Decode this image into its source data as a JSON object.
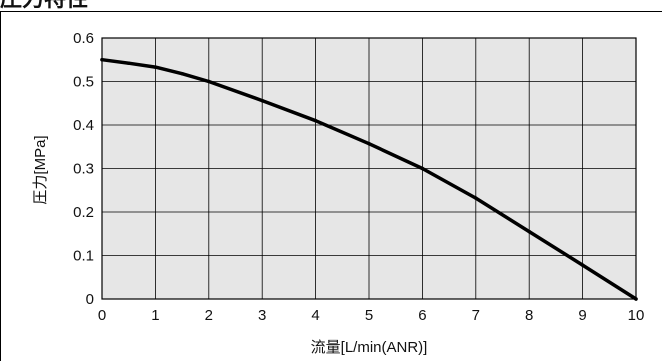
{
  "header": {
    "title": "圧力特性"
  },
  "chart_data": {
    "type": "line",
    "title": "",
    "xlabel": "流量[L/min(ANR)]",
    "ylabel": "圧力[MPa]",
    "xlim": [
      0,
      10
    ],
    "ylim": [
      0,
      0.6
    ],
    "x_ticks": [
      "0",
      "1",
      "2",
      "3",
      "4",
      "5",
      "6",
      "7",
      "8",
      "9",
      "10"
    ],
    "y_ticks": [
      "0",
      "0.1",
      "0.2",
      "0.3",
      "0.4",
      "0.5",
      "0.6"
    ],
    "grid": true,
    "series": [
      {
        "x": [
          0,
          0.5,
          1,
          1.5,
          2,
          3,
          4,
          5,
          6,
          7,
          8,
          9,
          10
        ],
        "y": [
          0.55,
          0.542,
          0.533,
          0.518,
          0.5,
          0.456,
          0.41,
          0.357,
          0.3,
          0.232,
          0.155,
          0.078,
          0.0
        ]
      }
    ],
    "colors": {
      "plot_bg": "#e6e6e6",
      "line": "#000000",
      "grid": "#000000"
    }
  }
}
